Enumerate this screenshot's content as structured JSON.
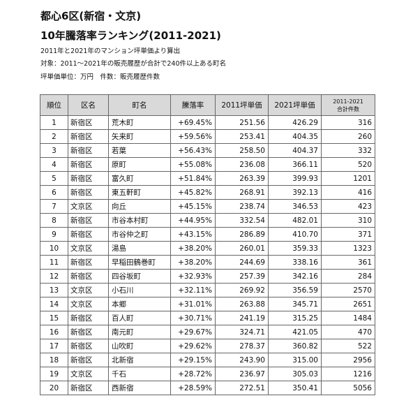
{
  "title_line1": "都心6区(新宿・文京)",
  "title_line2": "10年騰落率ランキング(2011-2021)",
  "note1": "2011年と2021年のマンション坪単価より算出",
  "note2": "対象：2011〜2021年の販売履歴が合計で240件以上ある町名",
  "note3": "坪単価単位：万円　件数：販売履歴件数",
  "columns": {
    "rank": "順位",
    "ward": "区名",
    "town": "町名",
    "rate": "騰落率",
    "p2011": "2011坪単価",
    "p2021": "2021坪単価",
    "count_line1": "2011-2021",
    "count_line2": "合計件数"
  },
  "rows": [
    {
      "rank": "1",
      "ward": "新宿区",
      "town": "荒木町",
      "rate": "+69.45%",
      "p2011": "251.56",
      "p2021": "426.29",
      "count": "316"
    },
    {
      "rank": "2",
      "ward": "新宿区",
      "town": "矢来町",
      "rate": "+59.56%",
      "p2011": "253.41",
      "p2021": "404.35",
      "count": "260"
    },
    {
      "rank": "3",
      "ward": "新宿区",
      "town": "若葉",
      "rate": "+56.43%",
      "p2011": "258.50",
      "p2021": "404.37",
      "count": "332"
    },
    {
      "rank": "4",
      "ward": "新宿区",
      "town": "原町",
      "rate": "+55.08%",
      "p2011": "236.08",
      "p2021": "366.11",
      "count": "520"
    },
    {
      "rank": "5",
      "ward": "新宿区",
      "town": "富久町",
      "rate": "+51.84%",
      "p2011": "263.39",
      "p2021": "399.93",
      "count": "1201"
    },
    {
      "rank": "6",
      "ward": "新宿区",
      "town": "東五軒町",
      "rate": "+45.82%",
      "p2011": "268.91",
      "p2021": "392.13",
      "count": "416"
    },
    {
      "rank": "7",
      "ward": "文京区",
      "town": "向丘",
      "rate": "+45.15%",
      "p2011": "238.74",
      "p2021": "346.53",
      "count": "423"
    },
    {
      "rank": "8",
      "ward": "新宿区",
      "town": "市谷本村町",
      "rate": "+44.95%",
      "p2011": "332.54",
      "p2021": "482.01",
      "count": "310"
    },
    {
      "rank": "9",
      "ward": "新宿区",
      "town": "市谷仲之町",
      "rate": "+43.15%",
      "p2011": "286.89",
      "p2021": "410.70",
      "count": "371"
    },
    {
      "rank": "10",
      "ward": "文京区",
      "town": "湯島",
      "rate": "+38.20%",
      "p2011": "260.01",
      "p2021": "359.33",
      "count": "1323"
    },
    {
      "rank": "11",
      "ward": "新宿区",
      "town": "早稲田鶴巻町",
      "rate": "+38.20%",
      "p2011": "244.69",
      "p2021": "338.16",
      "count": "361"
    },
    {
      "rank": "12",
      "ward": "新宿区",
      "town": "四谷坂町",
      "rate": "+32.93%",
      "p2011": "257.39",
      "p2021": "342.16",
      "count": "284"
    },
    {
      "rank": "13",
      "ward": "文京区",
      "town": "小石川",
      "rate": "+32.11%",
      "p2011": "269.92",
      "p2021": "356.59",
      "count": "2570"
    },
    {
      "rank": "14",
      "ward": "文京区",
      "town": "本郷",
      "rate": "+31.01%",
      "p2011": "263.88",
      "p2021": "345.71",
      "count": "2651"
    },
    {
      "rank": "15",
      "ward": "新宿区",
      "town": "百人町",
      "rate": "+30.71%",
      "p2011": "241.19",
      "p2021": "315.25",
      "count": "1484"
    },
    {
      "rank": "16",
      "ward": "新宿区",
      "town": "南元町",
      "rate": "+29.67%",
      "p2011": "324.71",
      "p2021": "421.05",
      "count": "470"
    },
    {
      "rank": "17",
      "ward": "新宿区",
      "town": "山吹町",
      "rate": "+29.62%",
      "p2011": "278.37",
      "p2021": "360.82",
      "count": "522"
    },
    {
      "rank": "18",
      "ward": "新宿区",
      "town": "北新宿",
      "rate": "+29.15%",
      "p2011": "243.90",
      "p2021": "315.00",
      "count": "2956"
    },
    {
      "rank": "19",
      "ward": "文京区",
      "town": "千石",
      "rate": "+28.72%",
      "p2011": "236.97",
      "p2021": "305.03",
      "count": "1216"
    },
    {
      "rank": "20",
      "ward": "新宿区",
      "town": "西新宿",
      "rate": "+28.59%",
      "p2011": "272.51",
      "p2021": "350.41",
      "count": "5056"
    }
  ]
}
